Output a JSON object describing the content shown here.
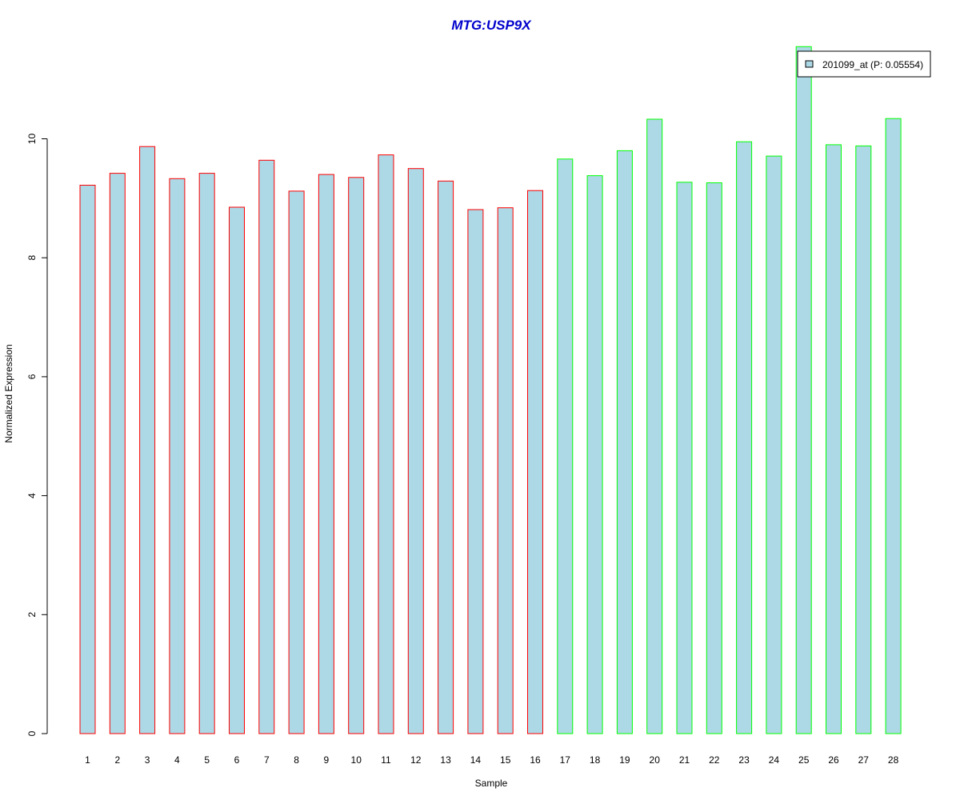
{
  "chart_data": {
    "type": "bar",
    "title": "MTG:USP9X",
    "title_color": "#0000CD",
    "xlabel": "Sample",
    "ylabel": "Normalized Expression",
    "ylim": [
      0,
      11.9
    ],
    "yticks": [
      0,
      2,
      4,
      6,
      8,
      10
    ],
    "categories": [
      "1",
      "2",
      "3",
      "4",
      "5",
      "6",
      "7",
      "8",
      "9",
      "10",
      "11",
      "12",
      "13",
      "14",
      "15",
      "16",
      "17",
      "18",
      "19",
      "20",
      "21",
      "22",
      "23",
      "24",
      "25",
      "26",
      "27",
      "28"
    ],
    "series": [
      {
        "name": "201099_at (P: 0.05554)",
        "fill": "#ADD8E6",
        "values": [
          9.22,
          9.42,
          9.87,
          9.33,
          9.42,
          8.85,
          9.64,
          9.12,
          9.4,
          9.35,
          9.73,
          9.5,
          9.29,
          8.81,
          8.84,
          9.13,
          9.66,
          9.38,
          9.8,
          10.33,
          9.27,
          9.26,
          9.95,
          9.71,
          11.55,
          9.9,
          9.88,
          10.34
        ]
      }
    ],
    "bar_outline_colors": [
      "#FF0000",
      "#FF0000",
      "#FF0000",
      "#FF0000",
      "#FF0000",
      "#FF0000",
      "#FF0000",
      "#FF0000",
      "#FF0000",
      "#FF0000",
      "#FF0000",
      "#FF0000",
      "#FF0000",
      "#FF0000",
      "#FF0000",
      "#FF0000",
      "#00FF00",
      "#00FF00",
      "#00FF00",
      "#00FF00",
      "#00FF00",
      "#00FF00",
      "#00FF00",
      "#00FF00",
      "#00FF00",
      "#00FF00",
      "#00FF00",
      "#00FF00"
    ],
    "legend": {
      "label": "201099_at (P: 0.05554)",
      "position": "top-right"
    },
    "grid": false
  }
}
